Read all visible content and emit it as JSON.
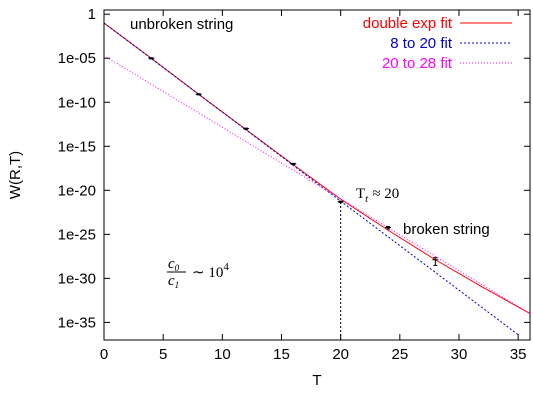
{
  "chart_data": {
    "type": "line",
    "log_y": true,
    "x_label": "T",
    "y_label": "W(R,T)",
    "xlim": [
      0,
      36
    ],
    "xticks": [
      0,
      5,
      10,
      15,
      20,
      25,
      30,
      35
    ],
    "ylim": [
      1e-37,
      3
    ],
    "yticks": [
      1,
      {
        "value": 1e-05,
        "label": "1e-05"
      },
      {
        "value": 1e-10,
        "label": "1e-10"
      },
      {
        "value": 1e-15,
        "label": "1e-15"
      },
      {
        "value": 1e-20,
        "label": "1e-20"
      },
      {
        "value": 1e-25,
        "label": "1e-25"
      },
      {
        "value": 1e-30,
        "label": "1e-30"
      },
      {
        "value": 1e-35,
        "label": "1e-35"
      }
    ],
    "series": [
      {
        "name": "double exp fit",
        "color": "#ff0000",
        "dash": "none",
        "x": [
          0,
          4,
          8,
          12,
          16,
          20,
          24,
          28,
          32,
          36
        ],
        "values": [
          0.1,
          1e-05,
          8e-10,
          8e-14,
          8e-18,
          1e-21,
          3e-25,
          1.3e-28,
          1e-31,
          1e-34
        ]
      },
      {
        "name": "8 to 20 fit",
        "color": "#0000cc",
        "dash": "2,2",
        "x": [
          0,
          35
        ],
        "values": [
          0.1,
          4e-37
        ]
      },
      {
        "name": "20 to 28 fit",
        "color": "#ff00ff",
        "dash": "1,2",
        "x": [
          0,
          36
        ],
        "values": [
          2e-05,
          1e-34
        ]
      }
    ],
    "points": {
      "x": [
        4,
        8,
        12,
        16,
        20,
        24,
        28
      ],
      "values": [
        1e-05,
        8e-10,
        1e-13,
        1e-17,
        5e-22,
        6e-25,
        1.3e-28
      ],
      "errors": [
        1.5e-06,
        1.2e-10,
        1.5e-14,
        1.5e-18,
        1e-22,
        2e-25,
        1e-28
      ]
    },
    "vline": {
      "x": 20,
      "value": 5e-22
    },
    "annotations": {
      "unbroken": "unbroken string",
      "broken": "broken string",
      "tt": {
        "main": "T",
        "sub": "t",
        "rest": "≈ 20"
      },
      "ratio": {
        "num": "c",
        "num_sub": "0",
        "den": "c",
        "den_sub": "1",
        "rest": "∼ 10",
        "sup": "4"
      }
    }
  }
}
